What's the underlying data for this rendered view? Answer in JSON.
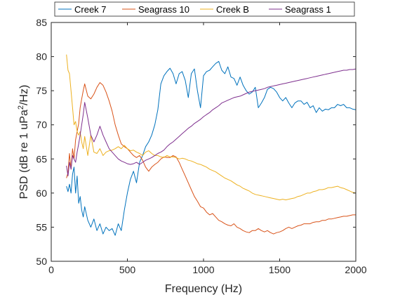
{
  "chart_data": {
    "type": "line",
    "title": "",
    "xlabel": "Frequency (Hz)",
    "ylabel": {
      "prefix": "PSD (dB re 1 uPa",
      "superscript": "2",
      "suffix": "/Hz)"
    },
    "xlim": [
      0,
      2000
    ],
    "ylim": [
      50,
      85
    ],
    "xticks": [
      0,
      500,
      1000,
      1500,
      2000
    ],
    "yticks": [
      50,
      55,
      60,
      65,
      70,
      75,
      80,
      85
    ],
    "grid": false,
    "legend_position": "top, horizontal, outside plot area",
    "series": [
      {
        "name": "Creek 7",
        "color": "#0072BD",
        "x": [
          100,
          110,
          120,
          130,
          140,
          150,
          160,
          170,
          180,
          190,
          200,
          210,
          220,
          240,
          260,
          280,
          300,
          320,
          340,
          360,
          380,
          400,
          420,
          440,
          460,
          480,
          500,
          520,
          540,
          560,
          580,
          600,
          620,
          640,
          660,
          680,
          700,
          720,
          740,
          760,
          780,
          800,
          820,
          840,
          860,
          880,
          900,
          920,
          940,
          960,
          980,
          1000,
          1020,
          1040,
          1060,
          1080,
          1100,
          1120,
          1140,
          1160,
          1180,
          1200,
          1220,
          1240,
          1260,
          1280,
          1300,
          1320,
          1340,
          1360,
          1380,
          1400,
          1420,
          1440,
          1460,
          1480,
          1500,
          1520,
          1540,
          1560,
          1580,
          1600,
          1620,
          1640,
          1660,
          1680,
          1700,
          1720,
          1740,
          1760,
          1780,
          1800,
          1820,
          1840,
          1860,
          1880,
          1900,
          1920,
          1940,
          1960,
          1980,
          2000
        ],
        "y": [
          61,
          60.2,
          61.3,
          60,
          62.8,
          63.8,
          60,
          62.5,
          58.5,
          59.5,
          57.5,
          56.5,
          58,
          56,
          55,
          56.2,
          54.5,
          55.5,
          54,
          55,
          54.5,
          54.8,
          53.8,
          55.5,
          54.5,
          57.5,
          60,
          62,
          63.2,
          61.5,
          64.5,
          65.5,
          66.8,
          67.5,
          68.5,
          70,
          72.2,
          76,
          77.2,
          77.8,
          78.3,
          77.5,
          76,
          77.5,
          77.8,
          76.5,
          74,
          77.5,
          78.2,
          75,
          72.5,
          77.2,
          77.8,
          78,
          78.5,
          79,
          79.3,
          78,
          77.5,
          78.5,
          77,
          76.8,
          75.8,
          77,
          75.8,
          75,
          74.5,
          74.8,
          75.5,
          72.5,
          73.2,
          74,
          75.2,
          75.5,
          75.3,
          74.8,
          74,
          73.5,
          74,
          73.2,
          72.5,
          73.2,
          73.5,
          73.5,
          73,
          73.3,
          72.5,
          72.8,
          71.8,
          72.5,
          72,
          72.3,
          72.2,
          72.5,
          72.5,
          73,
          72.8,
          73,
          72.5,
          72.5,
          72.3,
          72.2
        ]
      },
      {
        "name": "Seagrass 10",
        "color": "#D95319",
        "x": [
          100,
          110,
          120,
          130,
          140,
          150,
          160,
          170,
          180,
          190,
          200,
          210,
          220,
          240,
          260,
          280,
          300,
          320,
          340,
          360,
          380,
          400,
          420,
          440,
          460,
          480,
          500,
          520,
          540,
          560,
          580,
          600,
          620,
          640,
          660,
          680,
          700,
          720,
          740,
          760,
          780,
          800,
          820,
          840,
          860,
          880,
          900,
          920,
          940,
          960,
          980,
          1000,
          1020,
          1040,
          1060,
          1080,
          1100,
          1120,
          1140,
          1160,
          1180,
          1200,
          1220,
          1240,
          1260,
          1280,
          1300,
          1320,
          1340,
          1360,
          1380,
          1400,
          1420,
          1440,
          1460,
          1480,
          1500,
          1520,
          1540,
          1560,
          1580,
          1600,
          1620,
          1640,
          1660,
          1680,
          1700,
          1720,
          1740,
          1760,
          1780,
          1800,
          1820,
          1840,
          1860,
          1880,
          1900,
          1920,
          1940,
          1960,
          1980,
          2000
        ],
        "y": [
          62.2,
          63,
          65.8,
          63.5,
          66.5,
          65,
          67.8,
          69,
          70.2,
          72.5,
          73.8,
          75,
          76,
          74.2,
          73.8,
          74.5,
          75.5,
          76.2,
          75.8,
          74.8,
          73.5,
          72,
          70,
          68.5,
          67.2,
          66.8,
          66.5,
          66,
          65.5,
          65.2,
          65.5,
          64.8,
          63.8,
          63.2,
          63.8,
          64.2,
          64.5,
          65,
          65.3,
          65.2,
          65.2,
          65.5,
          65.3,
          64.5,
          63.5,
          62.5,
          61.5,
          60.5,
          59.5,
          58.8,
          58,
          57.8,
          57.2,
          56.8,
          57,
          56.5,
          56,
          55.8,
          55.5,
          55.3,
          55.2,
          55.5,
          55,
          54.8,
          54.5,
          54.3,
          54.2,
          54.5,
          54.5,
          54.8,
          54.5,
          54.3,
          54.5,
          54.2,
          54,
          54.2,
          54.3,
          54.5,
          54.8,
          55,
          54.8,
          55,
          55.2,
          55.3,
          55.5,
          55.5,
          55.5,
          55.7,
          55.8,
          55.8,
          56,
          56,
          56.2,
          56.2,
          56.3,
          56.4,
          56.5,
          56.6,
          56.6,
          56.7,
          56.8,
          56.8
        ]
      },
      {
        "name": "Creek B",
        "color": "#EDB120",
        "x": [
          100,
          110,
          120,
          130,
          140,
          150,
          160,
          170,
          180,
          190,
          200,
          210,
          220,
          240,
          260,
          280,
          300,
          320,
          340,
          360,
          380,
          400,
          420,
          440,
          460,
          480,
          500,
          520,
          540,
          560,
          580,
          600,
          620,
          640,
          660,
          680,
          700,
          720,
          740,
          760,
          780,
          800,
          820,
          840,
          860,
          880,
          900,
          920,
          940,
          960,
          980,
          1000,
          1020,
          1040,
          1060,
          1080,
          1100,
          1120,
          1140,
          1160,
          1180,
          1200,
          1220,
          1240,
          1260,
          1280,
          1300,
          1320,
          1340,
          1360,
          1380,
          1400,
          1420,
          1440,
          1460,
          1480,
          1500,
          1520,
          1540,
          1560,
          1580,
          1600,
          1620,
          1640,
          1660,
          1680,
          1700,
          1720,
          1740,
          1760,
          1780,
          1800,
          1820,
          1840,
          1860,
          1880,
          1900,
          1920,
          1940,
          1960,
          1980,
          2000
        ],
        "y": [
          80.3,
          78,
          77.5,
          75,
          72.5,
          70,
          70.5,
          69,
          68.5,
          69,
          67.5,
          66.5,
          68.3,
          65.5,
          68.5,
          66,
          65.8,
          66.5,
          65.5,
          66,
          66.2,
          66.3,
          66.5,
          66.8,
          66.5,
          67,
          66.5,
          66.2,
          66.3,
          66,
          65.8,
          65.5,
          66,
          66.2,
          65.8,
          65.5,
          65.5,
          65.3,
          65.2,
          65.5,
          65.3,
          65.3,
          65.2,
          65,
          65.1,
          65,
          64.8,
          64.7,
          64.5,
          64.3,
          64.2,
          64,
          63.8,
          63.5,
          63.3,
          63.1,
          62.8,
          62.5,
          62.2,
          62,
          61.8,
          61.5,
          61.2,
          61,
          60.7,
          60.5,
          60.3,
          60,
          59.8,
          59.7,
          59.6,
          59.5,
          59.4,
          59.3,
          59.2,
          59.1,
          59,
          59.1,
          59,
          59.1,
          59.2,
          59.3,
          59.5,
          59.6,
          59.8,
          60,
          60,
          60.2,
          60.3,
          60.5,
          60.5,
          60.6,
          60.8,
          60.8,
          60.9,
          61,
          60.8,
          60.7,
          60.5,
          60.3,
          60.1,
          60
        ]
      },
      {
        "name": "Seagrass 1",
        "color": "#7E2F8E",
        "x": [
          100,
          110,
          120,
          130,
          140,
          150,
          160,
          170,
          180,
          190,
          200,
          210,
          220,
          240,
          260,
          280,
          300,
          320,
          340,
          360,
          380,
          400,
          420,
          440,
          460,
          480,
          500,
          520,
          540,
          560,
          580,
          600,
          620,
          640,
          660,
          680,
          700,
          720,
          740,
          760,
          780,
          800,
          820,
          840,
          860,
          880,
          900,
          920,
          940,
          960,
          980,
          1000,
          1020,
          1040,
          1060,
          1080,
          1100,
          1120,
          1140,
          1160,
          1180,
          1200,
          1220,
          1240,
          1260,
          1280,
          1300,
          1320,
          1340,
          1360,
          1380,
          1400,
          1420,
          1440,
          1460,
          1480,
          1500,
          1520,
          1540,
          1560,
          1580,
          1600,
          1620,
          1640,
          1660,
          1680,
          1700,
          1720,
          1740,
          1760,
          1780,
          1800,
          1820,
          1840,
          1860,
          1880,
          1900,
          1920,
          1940,
          1960,
          1980,
          2000
        ],
        "y": [
          64,
          62.5,
          64.5,
          63.5,
          65.5,
          65,
          64.5,
          66,
          67.2,
          68.5,
          70,
          71.5,
          73.3,
          71,
          68.5,
          67.5,
          68.5,
          69.8,
          68.5,
          67.5,
          66.5,
          66,
          65.5,
          65,
          64.7,
          64.5,
          64.3,
          64.2,
          64.3,
          64.5,
          64.2,
          64.5,
          64.8,
          65,
          65.2,
          65.5,
          65.8,
          66,
          66.3,
          66.8,
          67.2,
          67.5,
          67.9,
          68.3,
          68.7,
          69.1,
          69.5,
          69.8,
          70.2,
          70.5,
          70.8,
          71.2,
          71.5,
          71.8,
          72.2,
          72.5,
          72.8,
          73.2,
          73.4,
          73.6,
          73.8,
          74,
          74.1,
          74.2,
          74.4,
          74.6,
          74.8,
          74.9,
          75,
          75.1,
          75.2,
          75.3,
          75.5,
          75.6,
          75.7,
          75.8,
          75.9,
          76,
          76.1,
          76.2,
          76.3,
          76.4,
          76.5,
          76.6,
          76.7,
          76.8,
          76.9,
          77,
          77.1,
          77.2,
          77.3,
          77.4,
          77.5,
          77.6,
          77.7,
          77.8,
          77.9,
          78,
          78,
          78.1,
          78.1,
          78.2
        ]
      }
    ]
  }
}
